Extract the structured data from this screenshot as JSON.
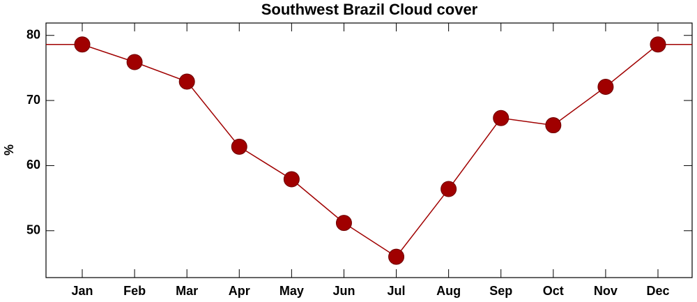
{
  "chart_data": {
    "type": "line",
    "title": "Southwest Brazil Cloud cover",
    "y_label": "%",
    "categories": [
      "Jan",
      "Feb",
      "Mar",
      "Apr",
      "May",
      "Jun",
      "Jul",
      "Aug",
      "Sep",
      "Oct",
      "Nov",
      "Dec"
    ],
    "series": [
      {
        "name": "Cloud cover",
        "color": "#a00000",
        "values": [
          78.6,
          75.9,
          72.9,
          62.9,
          57.9,
          51.2,
          46.0,
          56.4,
          67.3,
          66.2,
          72.1,
          78.6
        ]
      }
    ],
    "ylim": [
      42.8,
      81.9
    ],
    "yticks": [
      50,
      60,
      70,
      80
    ],
    "grid": false
  }
}
